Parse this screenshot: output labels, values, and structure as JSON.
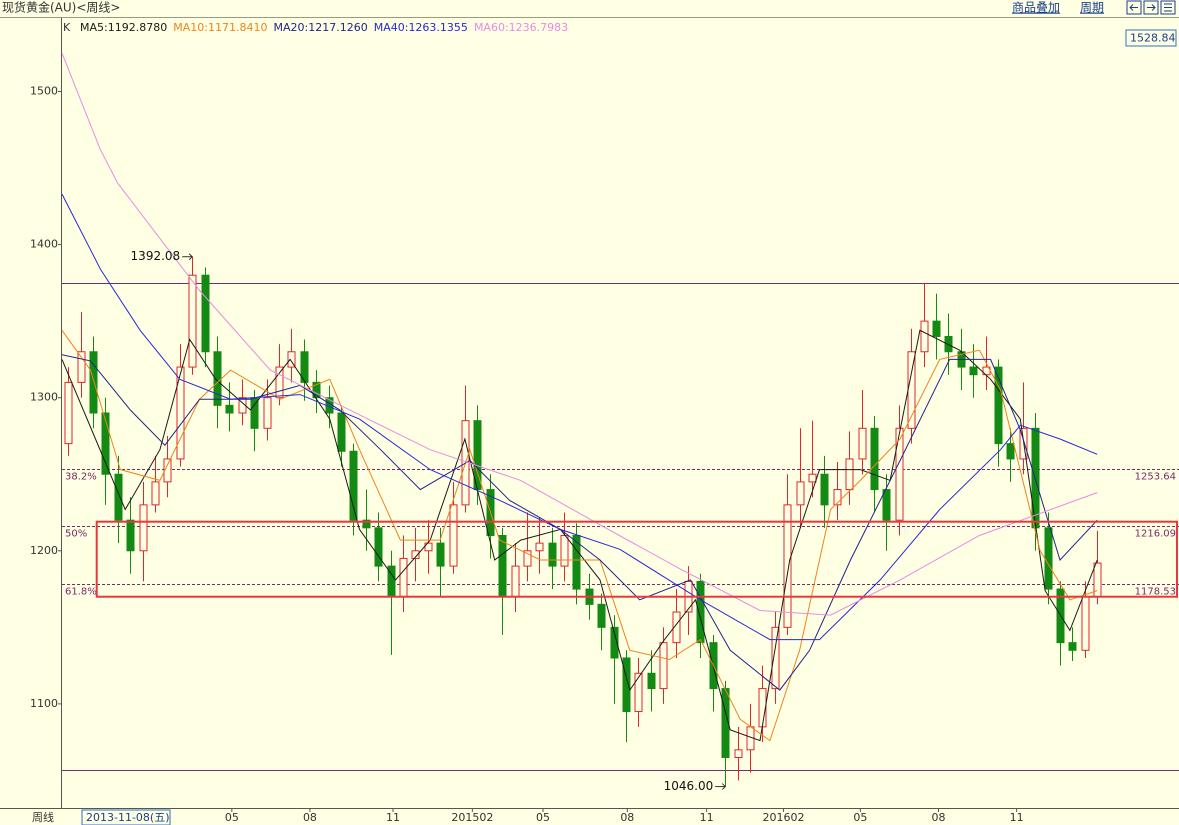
{
  "header": {
    "title": "现货黄金(AU)<周线>",
    "toolbar": [
      "商品叠加",
      "周期"
    ]
  },
  "chart_data": {
    "type": "candlestick",
    "kline_label": "K",
    "axis_caption": "周线",
    "cursor_date": "2013-11-08(五)",
    "cursor_price": 1528.84,
    "up_color": "#e0262b",
    "down_color": "#138a13",
    "xlim": [
      -0.5,
      89.6
    ],
    "ylim": [
      1032,
      1548
    ],
    "yticks": [
      1100,
      1200,
      1300,
      1400,
      1500
    ],
    "xticks": [
      {
        "value": 13.2,
        "label": "05"
      },
      {
        "value": 19.5,
        "label": "08"
      },
      {
        "value": 26.2,
        "label": "11"
      },
      {
        "value": 32.6,
        "label": "201502"
      },
      {
        "value": 38.3,
        "label": "05"
      },
      {
        "value": 45.1,
        "label": "08"
      },
      {
        "value": 51.5,
        "label": "11"
      },
      {
        "value": 57.7,
        "label": "201602"
      },
      {
        "value": 63.9,
        "label": "05"
      },
      {
        "value": 70.2,
        "label": "08"
      },
      {
        "value": 76.5,
        "label": "11"
      }
    ],
    "open": [
      1270,
      1310,
      1330,
      1290,
      1250,
      1220,
      1200,
      1230,
      1245,
      1260,
      1320,
      1380,
      1330,
      1295,
      1290,
      1300,
      1280,
      1300,
      1320,
      1330,
      1310,
      1300,
      1290,
      1265,
      1220,
      1215,
      1190,
      1170,
      1195,
      1200,
      1205,
      1190,
      1230,
      1285,
      1240,
      1210,
      1170,
      1190,
      1200,
      1205,
      1190,
      1210,
      1175,
      1165,
      1150,
      1130,
      1095,
      1120,
      1110,
      1140,
      1160,
      1180,
      1140,
      1110,
      1065,
      1070,
      1085,
      1110,
      1150,
      1230,
      1245,
      1250,
      1230,
      1240,
      1260,
      1280,
      1240,
      1220,
      1280,
      1330,
      1350,
      1340,
      1330,
      1320,
      1315,
      1320,
      1270,
      1260,
      1280,
      1215,
      1175,
      1140,
      1135,
      1170
    ],
    "high": [
      1320,
      1356,
      1340,
      1300,
      1262,
      1235,
      1245,
      1262,
      1275,
      1335,
      1392.08,
      1385,
      1340,
      1310,
      1312,
      1305,
      1312,
      1335,
      1345,
      1338,
      1318,
      1308,
      1295,
      1270,
      1240,
      1225,
      1200,
      1210,
      1215,
      1220,
      1215,
      1245,
      1308,
      1295,
      1250,
      1215,
      1205,
      1225,
      1222,
      1215,
      1225,
      1218,
      1185,
      1172,
      1158,
      1135,
      1130,
      1135,
      1150,
      1175,
      1190,
      1185,
      1145,
      1115,
      1085,
      1100,
      1125,
      1160,
      1250,
      1280,
      1285,
      1262,
      1258,
      1278,
      1305,
      1288,
      1250,
      1295,
      1345,
      1375,
      1368,
      1355,
      1345,
      1335,
      1340,
      1325,
      1280,
      1310,
      1290,
      1225,
      1180,
      1150,
      1180,
      1213
    ],
    "low": [
      1262,
      1300,
      1280,
      1230,
      1205,
      1185,
      1180,
      1225,
      1235,
      1255,
      1315,
      1320,
      1280,
      1278,
      1282,
      1265,
      1272,
      1295,
      1310,
      1298,
      1290,
      1280,
      1255,
      1210,
      1200,
      1180,
      1132,
      1160,
      1180,
      1185,
      1170,
      1185,
      1225,
      1230,
      1195,
      1145,
      1160,
      1180,
      1185,
      1175,
      1180,
      1165,
      1155,
      1135,
      1100,
      1075,
      1085,
      1095,
      1100,
      1130,
      1145,
      1130,
      1095,
      1046,
      1050,
      1055,
      1075,
      1100,
      1145,
      1215,
      1235,
      1215,
      1220,
      1230,
      1250,
      1225,
      1200,
      1210,
      1270,
      1320,
      1325,
      1315,
      1305,
      1300,
      1305,
      1255,
      1245,
      1250,
      1200,
      1165,
      1125,
      1128,
      1130,
      1165
    ],
    "close": [
      1310,
      1330,
      1290,
      1250,
      1220,
      1200,
      1230,
      1245,
      1260,
      1320,
      1380,
      1330,
      1295,
      1290,
      1300,
      1280,
      1300,
      1320,
      1330,
      1310,
      1300,
      1290,
      1265,
      1220,
      1215,
      1190,
      1170,
      1195,
      1200,
      1205,
      1190,
      1230,
      1285,
      1240,
      1210,
      1170,
      1190,
      1200,
      1205,
      1190,
      1210,
      1175,
      1165,
      1150,
      1130,
      1095,
      1120,
      1110,
      1140,
      1160,
      1180,
      1140,
      1110,
      1065,
      1070,
      1085,
      1110,
      1150,
      1230,
      1245,
      1250,
      1230,
      1240,
      1260,
      1280,
      1240,
      1220,
      1280,
      1330,
      1350,
      1340,
      1330,
      1320,
      1315,
      1320,
      1270,
      1260,
      1280,
      1215,
      1175,
      1140,
      1135,
      1170,
      1192
    ],
    "series": [
      {
        "name": "MA5",
        "current": 1192.878,
        "current_label": "1192.8780",
        "color": "#1a1a1a",
        "x": [
          -0.5,
          2.2,
          4.6,
          7.4,
          9.8,
          11.9,
          14.7,
          17.9,
          21.1,
          23.5,
          26.4,
          29.2,
          32,
          34.4,
          36.5,
          39.7,
          42.9,
          45.3,
          48.1,
          50.6,
          53.4,
          55.8,
          58.2,
          60.6,
          63.9,
          66.3,
          68.7,
          71.9,
          74.4,
          76.8,
          78.8,
          80.8,
          83
        ],
        "values": [
          1325,
          1273,
          1227,
          1266,
          1338,
          1312,
          1292,
          1325,
          1286,
          1214,
          1181,
          1207,
          1273,
          1194,
          1207,
          1214,
          1181,
          1109,
          1142,
          1168,
          1083,
          1076,
          1194,
          1253,
          1253,
          1246,
          1344,
          1331,
          1312,
          1286,
          1174,
          1148,
          1194
        ]
      },
      {
        "name": "MA10",
        "current": 1171.841,
        "current_label": "1171.8410",
        "color": "#f0821e",
        "x": [
          -0.5,
          1.8,
          4.2,
          7.4,
          10.6,
          13.1,
          17.1,
          21.1,
          23.5,
          26.8,
          30,
          32.4,
          34.8,
          38.1,
          42.9,
          45.3,
          48.5,
          51,
          54.2,
          56.6,
          59,
          61.5,
          63.9,
          67.1,
          70.3,
          73.5,
          75.2,
          78.4,
          80.8,
          83
        ],
        "values": [
          1344,
          1318,
          1253,
          1246,
          1299,
          1318,
          1299,
          1312,
          1266,
          1207,
          1207,
          1266,
          1207,
          1194,
          1194,
          1135,
          1129,
          1142,
          1090,
          1076,
          1135,
          1227,
          1246,
          1273,
          1325,
          1331,
          1305,
          1200,
          1168,
          1174
        ]
      },
      {
        "name": "MA20",
        "current": 1217.126,
        "current_label": "1217.1260",
        "color": "#23238c",
        "x": [
          -0.5,
          1.8,
          5,
          7.8,
          10.6,
          14.7,
          18.7,
          21.9,
          25.2,
          28.4,
          32.4,
          35.6,
          39.7,
          42.9,
          46.1,
          50.2,
          53.4,
          57.4,
          59.8,
          63.1,
          67.1,
          71.1,
          74.4,
          76.8,
          80,
          83
        ],
        "values": [
          1328,
          1324,
          1292,
          1269,
          1299,
          1299,
          1308,
          1292,
          1266,
          1240,
          1259,
          1233,
          1214,
          1194,
          1168,
          1181,
          1135,
          1109,
          1135,
          1194,
          1259,
          1325,
          1325,
          1279,
          1194,
          1220
        ]
      },
      {
        "name": "MA40",
        "current": 1263.1355,
        "current_label": "1263.1355",
        "color": "#2828d8",
        "x": [
          -0.5,
          2.6,
          5.8,
          9,
          13.1,
          18.7,
          23.5,
          29.2,
          34.8,
          39.7,
          44.5,
          51,
          56.6,
          60.6,
          65.5,
          70.3,
          75.2,
          76.8,
          80,
          83
        ],
        "values": [
          1433,
          1384,
          1344,
          1312,
          1299,
          1302,
          1286,
          1253,
          1233,
          1214,
          1201,
          1168,
          1142,
          1142,
          1181,
          1227,
          1266,
          1282,
          1273,
          1263
        ]
      },
      {
        "name": "MA60",
        "current": 1236.7983,
        "current_label": "1236.7983",
        "color": "#e88ae8",
        "x": [
          -0.5,
          2.6,
          4,
          10.6,
          16.3,
          22.7,
          29.2,
          36.5,
          42.9,
          49.4,
          55.8,
          61.5,
          67.1,
          73.5,
          83
        ],
        "values": [
          1525,
          1462,
          1440,
          1370,
          1318,
          1292,
          1266,
          1246,
          1217,
          1188,
          1161,
          1158,
          1181,
          1210,
          1238
        ]
      }
    ],
    "range_lines": {
      "values": [
        1375.22,
        1056.96
      ],
      "color": "#7a2a6a"
    },
    "fib_levels": {
      "values": [
        1253.64,
        1216.09,
        1178.53
      ],
      "labels": [
        "38.2%",
        "50%",
        "61.8%"
      ],
      "color": "#7a2a6a"
    },
    "extremes": {
      "x": [
        10,
        53
      ],
      "values": [
        1392.08,
        1046
      ],
      "value_labels": [
        "1392.08",
        "1046.00"
      ]
    },
    "highlight": {
      "x0": 2.3,
      "range": [
        1170,
        1219
      ],
      "color": "#e8383d"
    }
  }
}
